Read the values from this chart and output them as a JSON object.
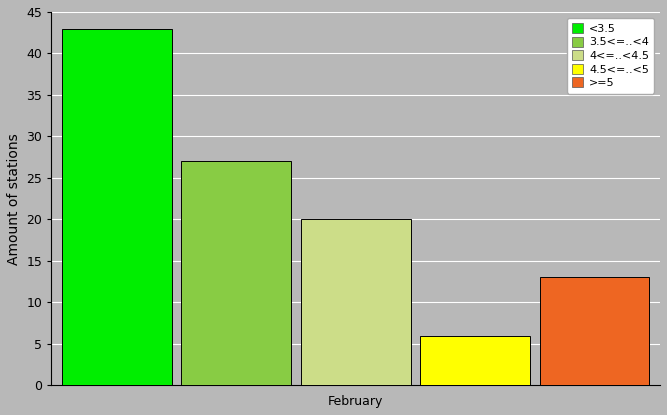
{
  "bars": [
    {
      "label": "<3.5",
      "value": 43,
      "color": "#00ee00"
    },
    {
      "label": "3.5<=..<4",
      "value": 27,
      "color": "#88cc44"
    },
    {
      "label": "4<=..<4.5",
      "value": 20,
      "color": "#ccdd88"
    },
    {
      "label": "4.5<=..<5",
      "value": 6,
      "color": "#ffff00"
    },
    {
      "label": ">=5",
      "value": 13,
      "color": "#ee6622"
    }
  ],
  "ylabel": "Amount of stations",
  "xlabel": "February",
  "ylim": [
    0,
    45
  ],
  "yticks": [
    0,
    5,
    10,
    15,
    20,
    25,
    30,
    35,
    40,
    45
  ],
  "background_color": "#b8b8b8",
  "plot_bg_color": "#b8b8b8",
  "legend_fontsize": 8,
  "axis_fontsize": 10,
  "tick_fontsize": 9,
  "bar_edge_color": "#000000"
}
